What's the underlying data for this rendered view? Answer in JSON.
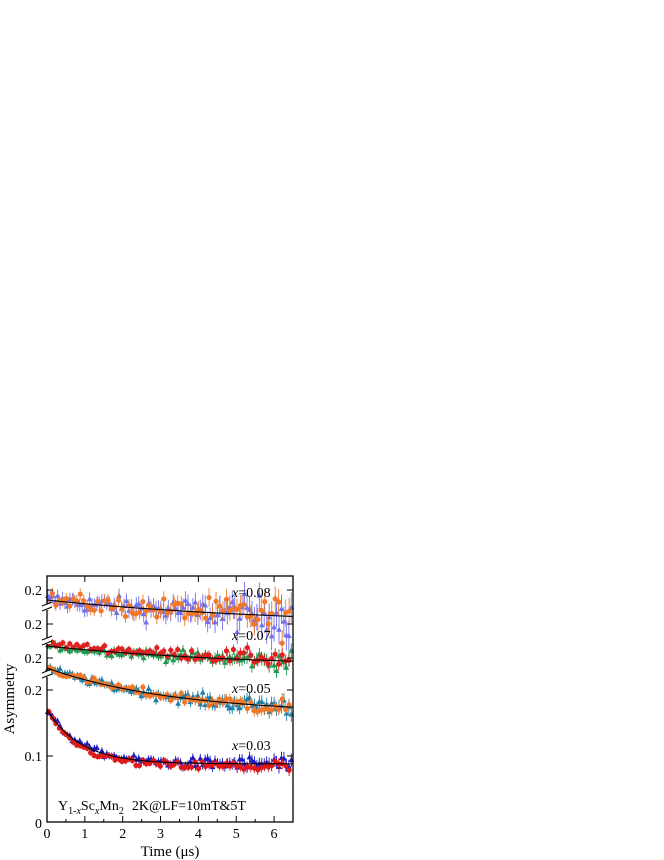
{
  "chart_data": {
    "type": "scatter",
    "title": "",
    "xlabel": "Time (μs)",
    "ylabel": "Asymmetry",
    "xlim": [
      0,
      6.5
    ],
    "x_ticks": [
      "0",
      "1",
      "2",
      "3",
      "4",
      "5",
      "6"
    ],
    "y_ticks": [
      "0",
      "0.1",
      "0.2",
      "0.2",
      "0.2",
      "0.2"
    ],
    "annotation": {
      "sample_prefix": "Y",
      "sample_sub1": "1-",
      "sample_sub1_var": "x",
      "sample_mid": "Sc",
      "sample_sub2": "x",
      "sample_end": "Mn",
      "sample_sub3": "2",
      "condition": "2K@LF=10mT&5T"
    },
    "curve_labels": [
      {
        "var": "x",
        "text": "=0.08"
      },
      {
        "var": "x",
        "text": "=0.07"
      },
      {
        "var": "x",
        "text": "=0.05"
      },
      {
        "var": "x",
        "text": "=0.03"
      }
    ],
    "groups": [
      {
        "label_index": 0,
        "start": 0.195,
        "end": 0.182,
        "tau": 6.5,
        "noise": 0.0028,
        "lf5t_offset": 0.0,
        "colors": {
          "lf10mt": "#7070ee",
          "lf5t": "#f07828",
          "fit": "#000000"
        }
      },
      {
        "label_index": 1,
        "start": 0.189,
        "end": 0.178,
        "tau": 5.5,
        "noise": 0.0012,
        "lf5t_offset": 0.0013,
        "colors": {
          "lf10mt": "#1e9650",
          "lf5t": "#e02020",
          "fit": "#000000"
        }
      },
      {
        "label_index": 2,
        "start": 0.195,
        "end": 0.172,
        "tau": 3.4,
        "noise": 0.0012,
        "lf5t_offset": 0.0,
        "colors": {
          "lf10mt": "#1a7fa8",
          "lf5t": "#f07828",
          "fit": "#000000"
        }
      },
      {
        "label_index": 3,
        "start": 0.17,
        "end": 0.088,
        "tau": 0.9,
        "noise": 0.0032,
        "lf5t_offset": -0.004,
        "colors": {
          "lf10mt": "#1818c8",
          "lf5t": "#e01818",
          "fit": "#000000"
        }
      }
    ]
  }
}
